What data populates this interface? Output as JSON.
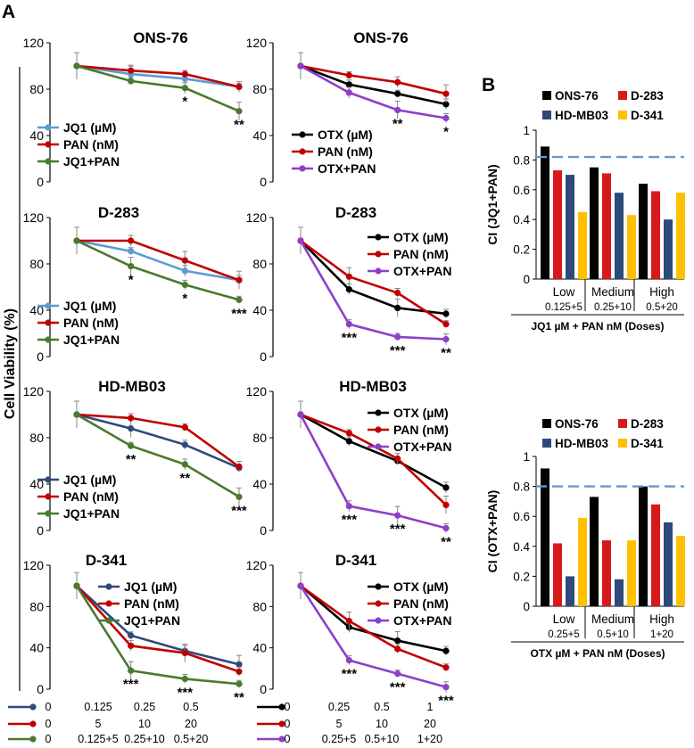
{
  "panel_labels": {
    "a": "A",
    "b": "B"
  },
  "shared_y_label": "Cell Viability (%)",
  "line_y_ticks": [
    "0",
    "40",
    "80",
    "120"
  ],
  "bar_y_ticks": [
    "0",
    "0.2",
    "0.4",
    "0.6",
    "0.8",
    "1"
  ],
  "colors": {
    "jq1": "#5b9bd5",
    "jq1_d341": "#2e4a7a",
    "pan": "#c00000",
    "jq1pan": "#4a7a2c",
    "otx": "#000000",
    "otxpan": "#8e3fc9",
    "ons76": "#000000",
    "d283": "#d7191c",
    "hdmb03": "#2e4a7a",
    "d341": "#ffc000",
    "threshold": "#5b9bd5"
  },
  "dose_legend": {
    "jq1": {
      "values": [
        "0",
        "0.125",
        "0.25",
        "0.5"
      ],
      "color": "#2e4a7a"
    },
    "pan_jq1": {
      "values": [
        "0",
        "5",
        "10",
        "20"
      ],
      "color": "#c00000"
    },
    "combo_jq1": {
      "values": [
        "0",
        "0.125+5",
        "0.25+10",
        "0.5+20"
      ],
      "color": "#4a7a2c"
    },
    "otx": {
      "values": [
        "0",
        "0.25",
        "0.5",
        "1"
      ],
      "color": "#000000"
    },
    "pan_otx": {
      "values": [
        "0",
        "5",
        "10",
        "20"
      ],
      "color": "#c00000"
    },
    "combo_otx": {
      "values": [
        "0",
        "0.25+5",
        "0.5+10",
        "1+20"
      ],
      "color": "#8e3fc9"
    }
  },
  "chart_data": [
    {
      "type": "line",
      "title": "ONS-76",
      "x": [
        0,
        1,
        2,
        3
      ],
      "ylim": [
        0,
        120
      ],
      "ylabel": "Cell Viability (%)",
      "series": [
        {
          "name": "JQ1 (µM)",
          "color": "#5b9bd5",
          "values": [
            100,
            93,
            89,
            82
          ]
        },
        {
          "name": "PAN (nM)",
          "color": "#c00000",
          "values": [
            100,
            96,
            93,
            82
          ]
        },
        {
          "name": "JQ1+PAN",
          "color": "#4a7a2c",
          "values": [
            100,
            87,
            81,
            61
          ]
        }
      ],
      "annotations": [
        {
          "x": 2,
          "label": "*"
        },
        {
          "x": 3,
          "label": "**"
        }
      ]
    },
    {
      "type": "line",
      "title": "ONS-76",
      "x": [
        0,
        1,
        2,
        3
      ],
      "ylim": [
        0,
        120
      ],
      "series": [
        {
          "name": "OTX (µM)",
          "color": "#000000",
          "values": [
            100,
            84,
            76,
            67
          ]
        },
        {
          "name": "PAN (nM)",
          "color": "#c00000",
          "values": [
            100,
            92,
            86,
            76
          ]
        },
        {
          "name": "OTX+PAN",
          "color": "#8e3fc9",
          "values": [
            100,
            77,
            62,
            55
          ]
        }
      ],
      "annotations": [
        {
          "x": 2,
          "label": "**"
        },
        {
          "x": 3,
          "label": "*"
        }
      ]
    },
    {
      "type": "line",
      "title": "D-283",
      "x": [
        0,
        1,
        2,
        3
      ],
      "ylim": [
        0,
        120
      ],
      "series": [
        {
          "name": "JQ1 (µM)",
          "color": "#5b9bd5",
          "values": [
            100,
            91,
            74,
            66
          ]
        },
        {
          "name": "PAN (nM)",
          "color": "#c00000",
          "values": [
            100,
            100,
            83,
            66
          ]
        },
        {
          "name": "JQ1+PAN",
          "color": "#4a7a2c",
          "values": [
            100,
            78,
            62,
            49
          ]
        }
      ],
      "annotations": [
        {
          "x": 1,
          "label": "*"
        },
        {
          "x": 2,
          "label": "*"
        },
        {
          "x": 3,
          "label": "***"
        }
      ]
    },
    {
      "type": "line",
      "title": "D-283",
      "x": [
        0,
        1,
        2,
        3
      ],
      "ylim": [
        0,
        120
      ],
      "series": [
        {
          "name": "OTX (µM)",
          "color": "#000000",
          "values": [
            100,
            58,
            42,
            37
          ]
        },
        {
          "name": "PAN (nM)",
          "color": "#c00000",
          "values": [
            100,
            69,
            55,
            28
          ]
        },
        {
          "name": "OTX+PAN",
          "color": "#8e3fc9",
          "values": [
            100,
            28,
            17,
            15
          ]
        }
      ],
      "annotations": [
        {
          "x": 1,
          "label": "***"
        },
        {
          "x": 2,
          "label": "***"
        },
        {
          "x": 3,
          "label": "**"
        }
      ]
    },
    {
      "type": "line",
      "title": "HD-MB03",
      "x": [
        0,
        1,
        2,
        3
      ],
      "ylim": [
        0,
        120
      ],
      "series": [
        {
          "name": "JQ1 (µM)",
          "color": "#2e4a7a",
          "values": [
            100,
            88,
            74,
            54
          ]
        },
        {
          "name": "PAN (nM)",
          "color": "#c00000",
          "values": [
            100,
            97,
            89,
            55
          ]
        },
        {
          "name": "JQ1+PAN",
          "color": "#4a7a2c",
          "values": [
            100,
            73,
            57,
            29
          ]
        }
      ],
      "annotations": [
        {
          "x": 1,
          "label": "**"
        },
        {
          "x": 2,
          "label": "**"
        },
        {
          "x": 3,
          "label": "***"
        }
      ]
    },
    {
      "type": "line",
      "title": "HD-MB03",
      "x": [
        0,
        1,
        2,
        3
      ],
      "ylim": [
        0,
        120
      ],
      "series": [
        {
          "name": "OTX (µM)",
          "color": "#000000",
          "values": [
            100,
            77,
            60,
            37
          ]
        },
        {
          "name": "PAN (nM)",
          "color": "#c00000",
          "values": [
            100,
            84,
            62,
            22
          ]
        },
        {
          "name": "OTX+PAN",
          "color": "#8e3fc9",
          "values": [
            100,
            21,
            13,
            2
          ]
        }
      ],
      "annotations": [
        {
          "x": 1,
          "label": "***"
        },
        {
          "x": 2,
          "label": "***"
        },
        {
          "x": 3,
          "label": "**"
        }
      ]
    },
    {
      "type": "line",
      "title": "D-341",
      "x": [
        0,
        1,
        2,
        3
      ],
      "ylim": [
        0,
        120
      ],
      "series": [
        {
          "name": "JQ1 (µM)",
          "color": "#2e4a7a",
          "values": [
            100,
            52,
            37,
            24
          ]
        },
        {
          "name": "PAN (nM)",
          "color": "#c00000",
          "values": [
            100,
            42,
            35,
            17
          ]
        },
        {
          "name": "JQ1+PAN",
          "color": "#4a7a2c",
          "values": [
            100,
            18,
            10,
            5
          ]
        }
      ],
      "annotations": [
        {
          "x": 1,
          "label": "***"
        },
        {
          "x": 2,
          "label": "***"
        },
        {
          "x": 3,
          "label": "**"
        }
      ]
    },
    {
      "type": "line",
      "title": "D-341",
      "x": [
        0,
        1,
        2,
        3
      ],
      "ylim": [
        0,
        120
      ],
      "series": [
        {
          "name": "OTX (µM)",
          "color": "#000000",
          "values": [
            100,
            60,
            47,
            37
          ]
        },
        {
          "name": "PAN (nM)",
          "color": "#c00000",
          "values": [
            100,
            66,
            39,
            21
          ]
        },
        {
          "name": "OTX+PAN",
          "color": "#8e3fc9",
          "values": [
            100,
            28,
            15,
            2
          ]
        }
      ],
      "annotations": [
        {
          "x": 1,
          "label": "***"
        },
        {
          "x": 2,
          "label": "***"
        },
        {
          "x": 3,
          "label": "***"
        }
      ]
    },
    {
      "type": "bar",
      "ylabel": "CI (JQ1+PAN)",
      "ylim": [
        0,
        1
      ],
      "threshold": 0.82,
      "categories": [
        "Low",
        "Medium",
        "High"
      ],
      "doses": [
        "0.125+5",
        "0.25+10",
        "0.5+20"
      ],
      "xlabel": "JQ1 µM + PAN nM (Doses)",
      "series": [
        {
          "name": "ONS-76",
          "color": "#000000",
          "values": [
            0.89,
            0.75,
            0.64
          ]
        },
        {
          "name": "D-283",
          "color": "#d7191c",
          "values": [
            0.73,
            0.71,
            0.59
          ]
        },
        {
          "name": "HD-MB03",
          "color": "#2e4a7a",
          "values": [
            0.7,
            0.58,
            0.4
          ]
        },
        {
          "name": "D-341",
          "color": "#ffc000",
          "values": [
            0.45,
            0.43,
            0.58
          ]
        }
      ]
    },
    {
      "type": "bar",
      "ylabel": "CI (OTX+PAN)",
      "ylim": [
        0,
        1
      ],
      "threshold": 0.8,
      "categories": [
        "Low",
        "Medium",
        "High"
      ],
      "doses": [
        "0.25+5",
        "0.5+10",
        "1+20"
      ],
      "xlabel": "OTX µM + PAN nM (Doses)",
      "series": [
        {
          "name": "ONS-76",
          "color": "#000000",
          "values": [
            0.92,
            0.73,
            0.8
          ]
        },
        {
          "name": "D-283",
          "color": "#d7191c",
          "values": [
            0.42,
            0.44,
            0.68
          ]
        },
        {
          "name": "HD-MB03",
          "color": "#2e4a7a",
          "values": [
            0.2,
            0.18,
            0.56
          ]
        },
        {
          "name": "D-341",
          "color": "#ffc000",
          "values": [
            0.59,
            0.44,
            0.47
          ]
        }
      ]
    }
  ]
}
